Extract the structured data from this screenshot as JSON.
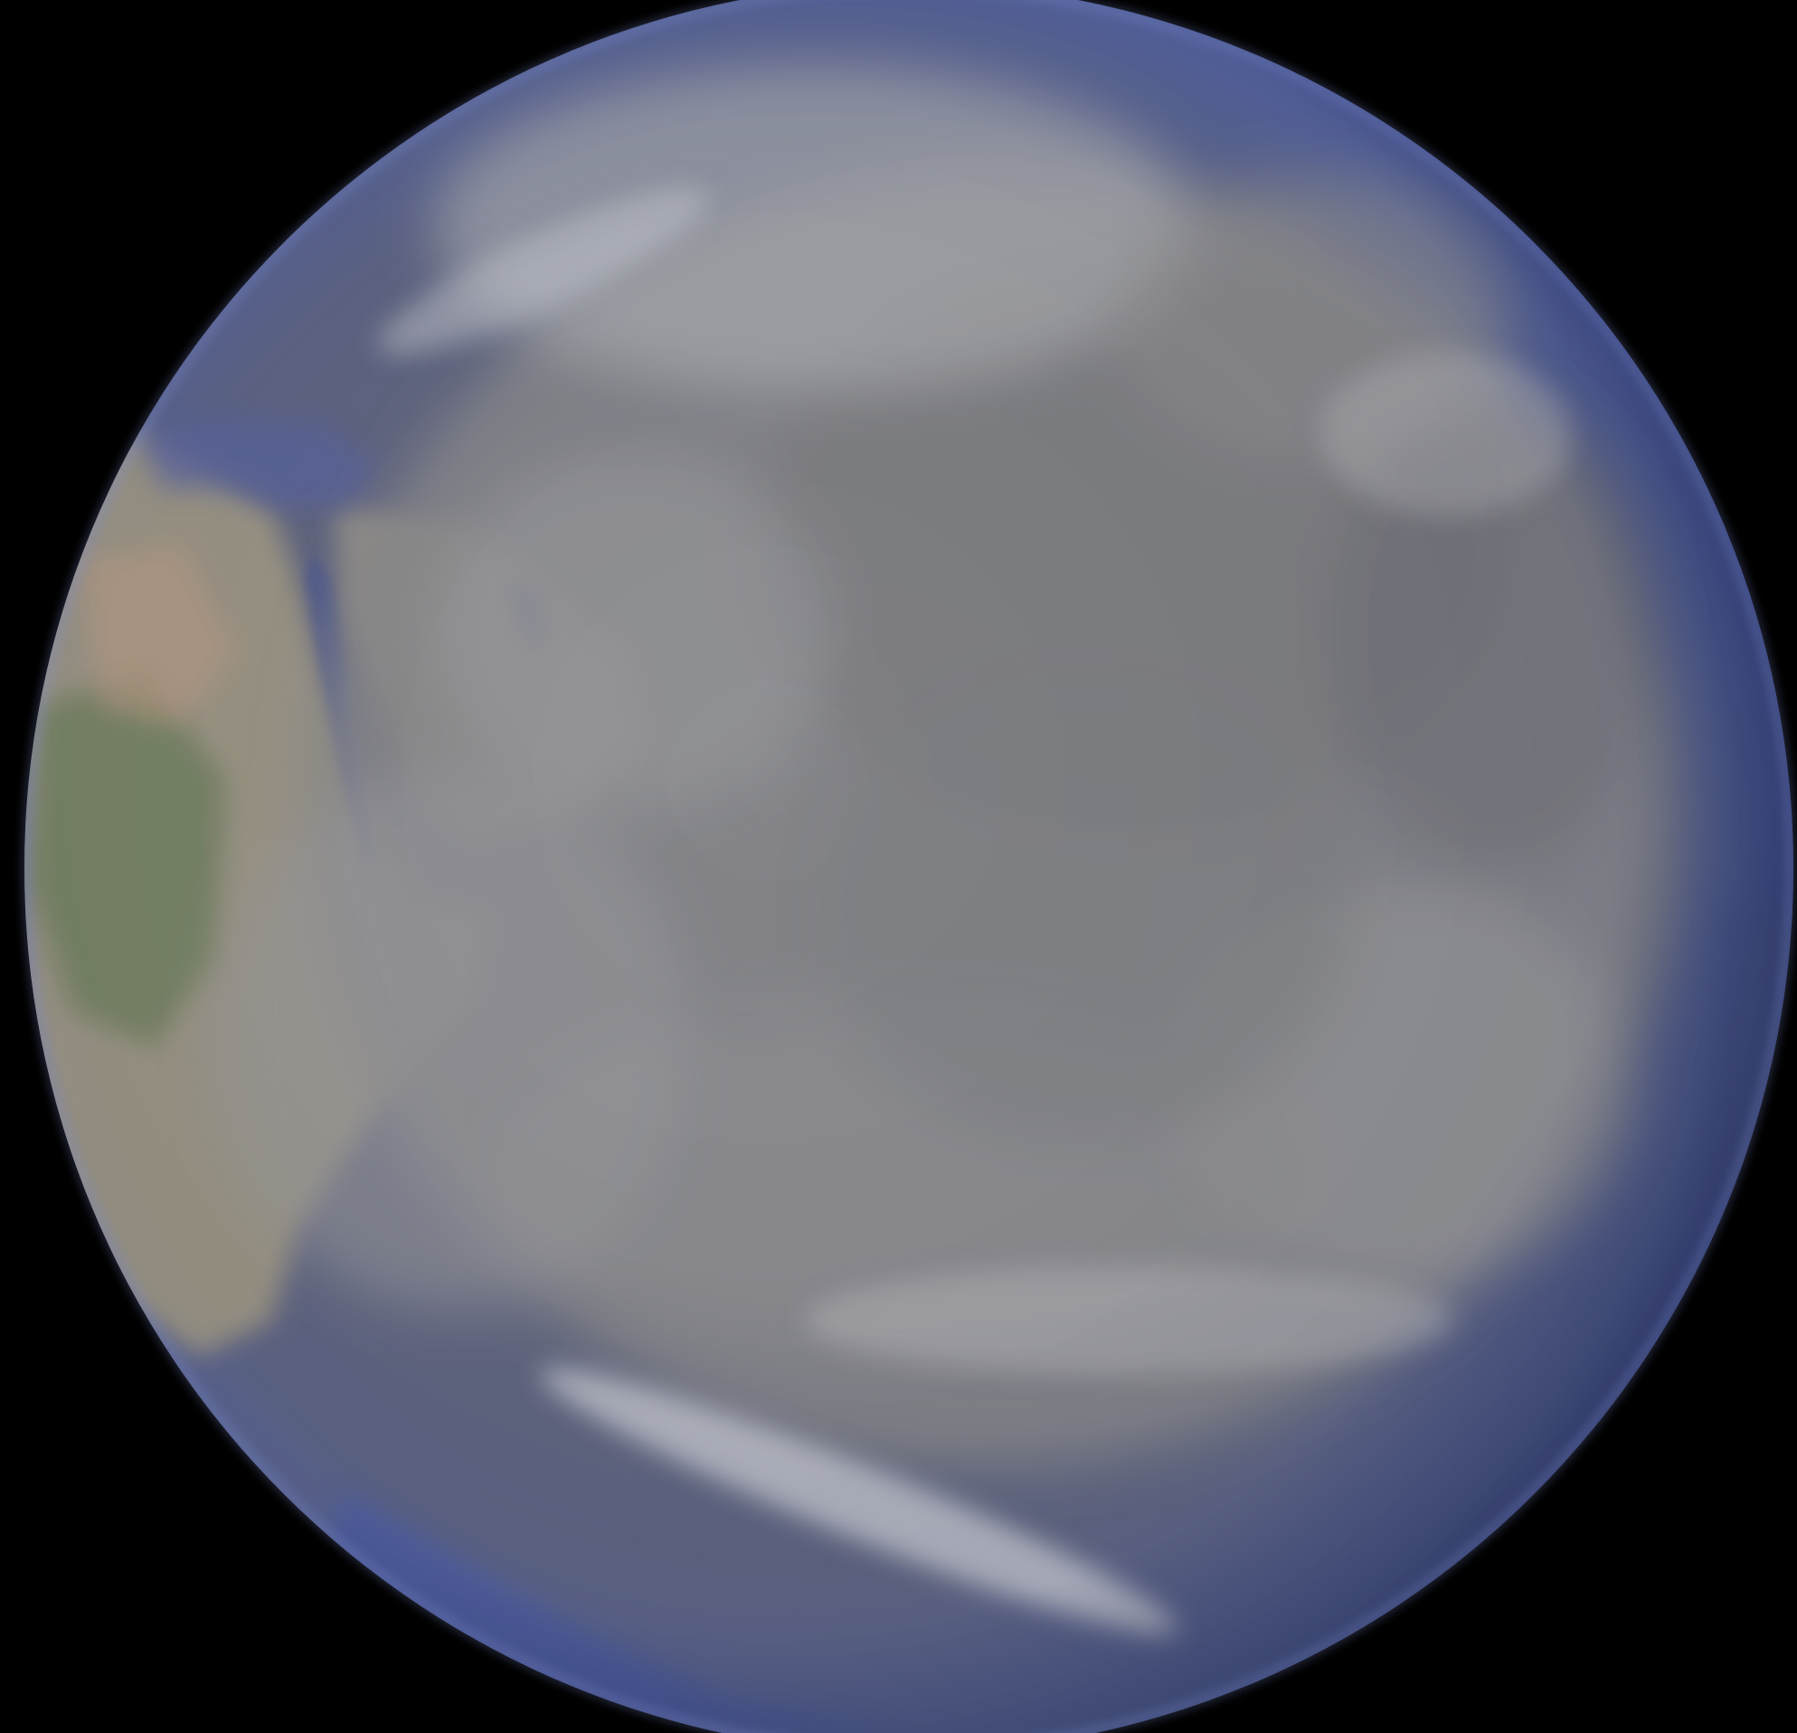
{
  "scene": {
    "subject": "earth-globe-from-space",
    "background_color": "#000000",
    "ocean_color": "#4e5f9c",
    "cloud_color": "#8c8c8e",
    "land_color": "#a8a48f",
    "limb_color": "#6a78b8"
  }
}
